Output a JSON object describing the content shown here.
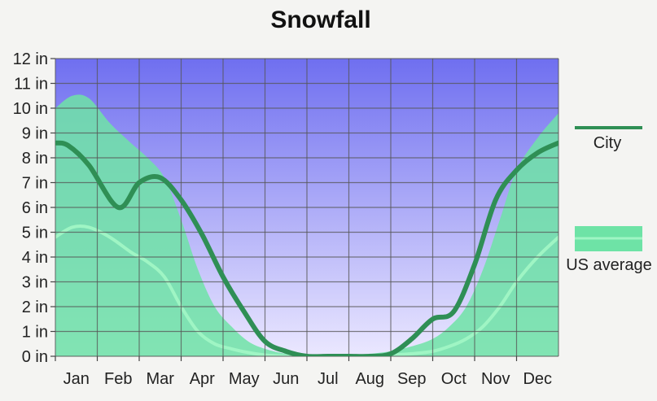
{
  "chart_data": {
    "type": "area",
    "title": "Snowfall",
    "xlabel": "",
    "ylabel": "",
    "categories": [
      "Jan",
      "Feb",
      "Mar",
      "Apr",
      "May",
      "Jun",
      "Jul",
      "Aug",
      "Sep",
      "Oct",
      "Nov",
      "Dec"
    ],
    "y_tick_labels": [
      "0 in",
      "1 in",
      "2 in",
      "3 in",
      "4 in",
      "5 in",
      "6 in",
      "7 in",
      "8 in",
      "9 in",
      "10 in",
      "11 in",
      "12 in"
    ],
    "ylim": [
      0,
      12
    ],
    "grid": true,
    "legend_position": "right",
    "series": [
      {
        "name": "City",
        "kind": "line",
        "color": "#2f8f55",
        "x": [
          0,
          0.3,
          0.8,
          1.5,
          2.0,
          2.5,
          3.0,
          3.5,
          4.0,
          4.5,
          5.0,
          5.5,
          6.0,
          6.5,
          7.0,
          7.5,
          8.0,
          8.5,
          9.0,
          9.5,
          10.0,
          10.5,
          11.0,
          11.5,
          12.0
        ],
        "values": [
          8.6,
          8.5,
          7.7,
          6.0,
          7.0,
          7.2,
          6.3,
          4.9,
          3.2,
          1.8,
          0.6,
          0.2,
          0.0,
          0.0,
          0.0,
          0.0,
          0.1,
          0.7,
          1.5,
          1.8,
          3.7,
          6.3,
          7.5,
          8.2,
          8.6
        ]
      },
      {
        "name": "US average",
        "kind": "band",
        "color_fill": "#6ee3a6",
        "color_line": "#9ff5c4",
        "x": [
          0,
          0.4,
          0.8,
          1.3,
          1.8,
          2.2,
          2.6,
          3.0,
          3.4,
          3.8,
          4.2,
          4.6,
          5.0,
          5.5,
          6.0,
          6.5,
          7.0,
          7.5,
          8.0,
          8.5,
          9.0,
          9.4,
          9.8,
          10.2,
          10.6,
          11.0,
          11.5,
          12.0
        ],
        "upper": [
          10.0,
          10.5,
          10.4,
          9.4,
          8.6,
          8.0,
          7.2,
          5.5,
          3.5,
          2.0,
          1.2,
          0.6,
          0.3,
          0.1,
          0.05,
          0.05,
          0.05,
          0.1,
          0.2,
          0.4,
          0.7,
          1.2,
          2.0,
          3.5,
          5.5,
          7.5,
          8.8,
          9.8
        ],
        "line": [
          4.8,
          5.2,
          5.2,
          4.8,
          4.2,
          3.8,
          3.2,
          2.0,
          1.0,
          0.5,
          0.3,
          0.15,
          0.05,
          0.0,
          0.0,
          0.0,
          0.0,
          0.0,
          0.05,
          0.1,
          0.2,
          0.4,
          0.7,
          1.2,
          2.0,
          3.0,
          4.0,
          4.8
        ]
      }
    ],
    "colors": {
      "plot_top": "#6f6ff0",
      "plot_bottom": "#ebe8ff",
      "grid": "#555555",
      "legend_city": "#2f8f55",
      "legend_us_fill": "#6ee3a6",
      "legend_us_line": "#9ff5c4"
    }
  }
}
